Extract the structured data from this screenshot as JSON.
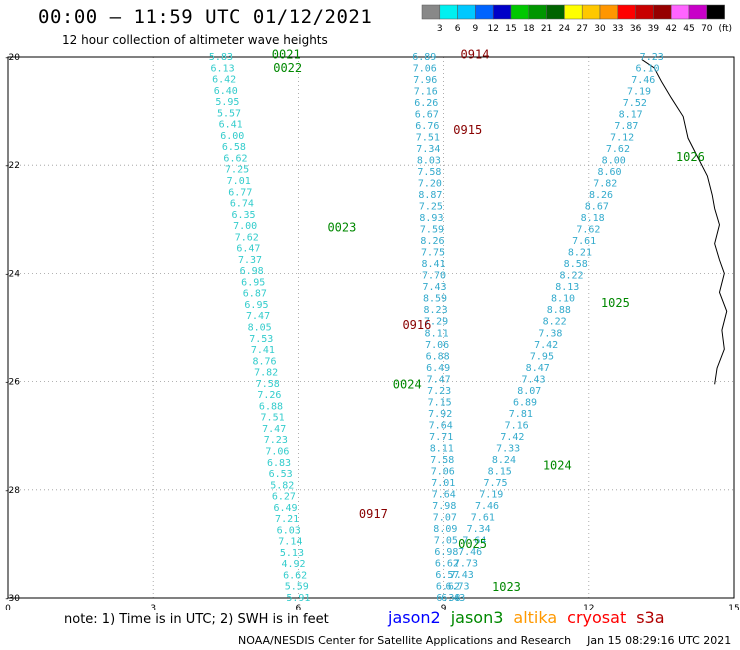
{
  "header": {
    "title": "00:00 – 11:59 UTC 01/12/2021",
    "subtitle": "12 hour collection of altimeter wave heights"
  },
  "footer": {
    "note": "note: 1) Time is in UTC; 2) SWH is in feet",
    "credit": "NOAA/NESDIS Center for Satellite Applications and Research",
    "timestamp": "Jan 15 08:29:16 UTC 2021"
  },
  "satellites": [
    {
      "name": "jason2",
      "color": "#0000ff"
    },
    {
      "name": "jason3",
      "color": "#008800"
    },
    {
      "name": "altika",
      "color": "#ff9900"
    },
    {
      "name": "cryosat",
      "color": "#ff0000"
    },
    {
      "name": "s3a",
      "color": "#b00000"
    }
  ],
  "colorbar": {
    "unit": "(ft)",
    "labels": [
      "3",
      "6",
      "9",
      "12",
      "15",
      "18",
      "21",
      "24",
      "27",
      "30",
      "33",
      "36",
      "39",
      "42",
      "45",
      "70"
    ],
    "colors": [
      "#888888",
      "#00f0f0",
      "#00c8ff",
      "#0064ff",
      "#0000c8",
      "#00c800",
      "#009600",
      "#006400",
      "#ffff00",
      "#ffc800",
      "#ff9600",
      "#ff0000",
      "#c80000",
      "#960000",
      "#ff64ff",
      "#c800c8",
      "#000000"
    ]
  },
  "chart_data": {
    "type": "scatter",
    "xlim": [
      0,
      15
    ],
    "ylim": [
      -30,
      -20
    ],
    "xticks": [
      "0",
      "3",
      "6",
      "9",
      "12",
      "15"
    ],
    "yticks": [
      "-20",
      "-22",
      "-24",
      "-26",
      "-28",
      "-30"
    ],
    "grid": true,
    "series": [
      {
        "track": "A",
        "color": "#33cccc",
        "start": [
          4.4,
          -20.0
        ],
        "end": [
          6.0,
          -30.0
        ],
        "values": [
          "5.83",
          "6.13",
          "6.42",
          "6.40",
          "5.95",
          "5.57",
          "6.41",
          "6.00",
          "6.58",
          "6.62",
          "7.25",
          "7.01",
          "6.77",
          "6.74",
          "6.35",
          "7.00",
          "7.62",
          "6.47",
          "7.37",
          "6.98",
          "6.95",
          "6.87",
          "6.95",
          "7.47",
          "8.05",
          "7.53",
          "7.41",
          "8.76",
          "7.82",
          "7.58",
          "7.26",
          "6.88",
          "7.51",
          "7.47",
          "7.23",
          "7.06",
          "6.83",
          "6.53",
          "5.82",
          "6.27",
          "6.49",
          "7.21",
          "6.03",
          "7.14",
          "5.13",
          "4.92",
          "6.62",
          "5.59",
          "5.91"
        ]
      },
      {
        "track": "B",
        "color": "#33aacc",
        "start": [
          8.6,
          -20.0
        ],
        "end": [
          9.1,
          -30.0
        ],
        "values": [
          "6.89",
          "7.06",
          "7.96",
          "7.16",
          "6.26",
          "6.67",
          "6.76",
          "7.51",
          "7.34",
          "8.03",
          "7.58",
          "7.20",
          "8.87",
          "7.25",
          "8.93",
          "7.59",
          "8.26",
          "7.75",
          "8.41",
          "7.70",
          "7.43",
          "8.59",
          "8.23",
          "7.29",
          "8.11",
          "7.06",
          "6.88",
          "6.49",
          "7.47",
          "7.23",
          "7.15",
          "7.92",
          "7.64",
          "7.71",
          "8.11",
          "7.58",
          "7.06",
          "7.01",
          "7.64",
          "7.98",
          "7.07",
          "8.09",
          "7.05",
          "6.98",
          "6.62",
          "6.57",
          "6.62",
          "6.38"
        ]
      },
      {
        "track": "C",
        "color": "#33aacc",
        "start": [
          13.3,
          -20.0
        ],
        "end": [
          9.2,
          -30.0
        ],
        "values": [
          "7.23",
          "6.10",
          "7.46",
          "7.19",
          "7.52",
          "8.17",
          "7.87",
          "7.12",
          "7.62",
          "8.00",
          "8.60",
          "7.82",
          "8.26",
          "8.67",
          "8.18",
          "7.62",
          "7.61",
          "8.21",
          "8.58",
          "8.22",
          "8.13",
          "8.10",
          "8.88",
          "8.22",
          "7.38",
          "7.42",
          "7.95",
          "8.47",
          "7.43",
          "8.07",
          "6.89",
          "7.81",
          "7.16",
          "7.42",
          "7.33",
          "8.24",
          "8.15",
          "7.75",
          "7.19",
          "7.46",
          "7.61",
          "7.34",
          "7.64",
          "7.46",
          "7.73",
          "7.43",
          "6.73",
          "6.43"
        ]
      }
    ],
    "pass_labels": [
      {
        "text": "0021",
        "color": "#008800",
        "x": 5.45,
        "y": -19.95
      },
      {
        "text": "0022",
        "color": "#008800",
        "x": 5.48,
        "y": -20.2
      },
      {
        "text": "0914",
        "color": "#880000",
        "x": 9.35,
        "y": -19.95
      },
      {
        "text": "0915",
        "color": "#880000",
        "x": 9.2,
        "y": -21.35
      },
      {
        "text": "1026",
        "color": "#008800",
        "x": 13.8,
        "y": -21.85
      },
      {
        "text": "0023",
        "color": "#008800",
        "x": 6.6,
        "y": -23.15
      },
      {
        "text": "1025",
        "color": "#008800",
        "x": 12.25,
        "y": -24.55
      },
      {
        "text": "0916",
        "color": "#880000",
        "x": 8.15,
        "y": -24.95
      },
      {
        "text": "0024",
        "color": "#008800",
        "x": 7.95,
        "y": -26.05
      },
      {
        "text": "1024",
        "color": "#008800",
        "x": 11.05,
        "y": -27.55
      },
      {
        "text": "0917",
        "color": "#880000",
        "x": 7.25,
        "y": -28.45
      },
      {
        "text": "0025",
        "color": "#008800",
        "x": 9.3,
        "y": -29.0
      },
      {
        "text": "1023",
        "color": "#008800",
        "x": 10.0,
        "y": -29.8
      }
    ],
    "coastline": [
      [
        13.1,
        -20.05
      ],
      [
        13.35,
        -20.2
      ],
      [
        13.5,
        -20.45
      ],
      [
        13.7,
        -20.75
      ],
      [
        13.95,
        -21.1
      ],
      [
        14.05,
        -21.5
      ],
      [
        14.25,
        -21.85
      ],
      [
        14.45,
        -22.2
      ],
      [
        14.55,
        -22.55
      ],
      [
        14.6,
        -22.8
      ],
      [
        14.7,
        -23.1
      ],
      [
        14.6,
        -23.45
      ],
      [
        14.7,
        -23.75
      ],
      [
        14.8,
        -24.0
      ],
      [
        14.7,
        -24.35
      ],
      [
        14.85,
        -24.7
      ],
      [
        14.75,
        -25.05
      ],
      [
        14.8,
        -25.4
      ],
      [
        14.65,
        -25.75
      ],
      [
        14.6,
        -26.05
      ]
    ]
  }
}
